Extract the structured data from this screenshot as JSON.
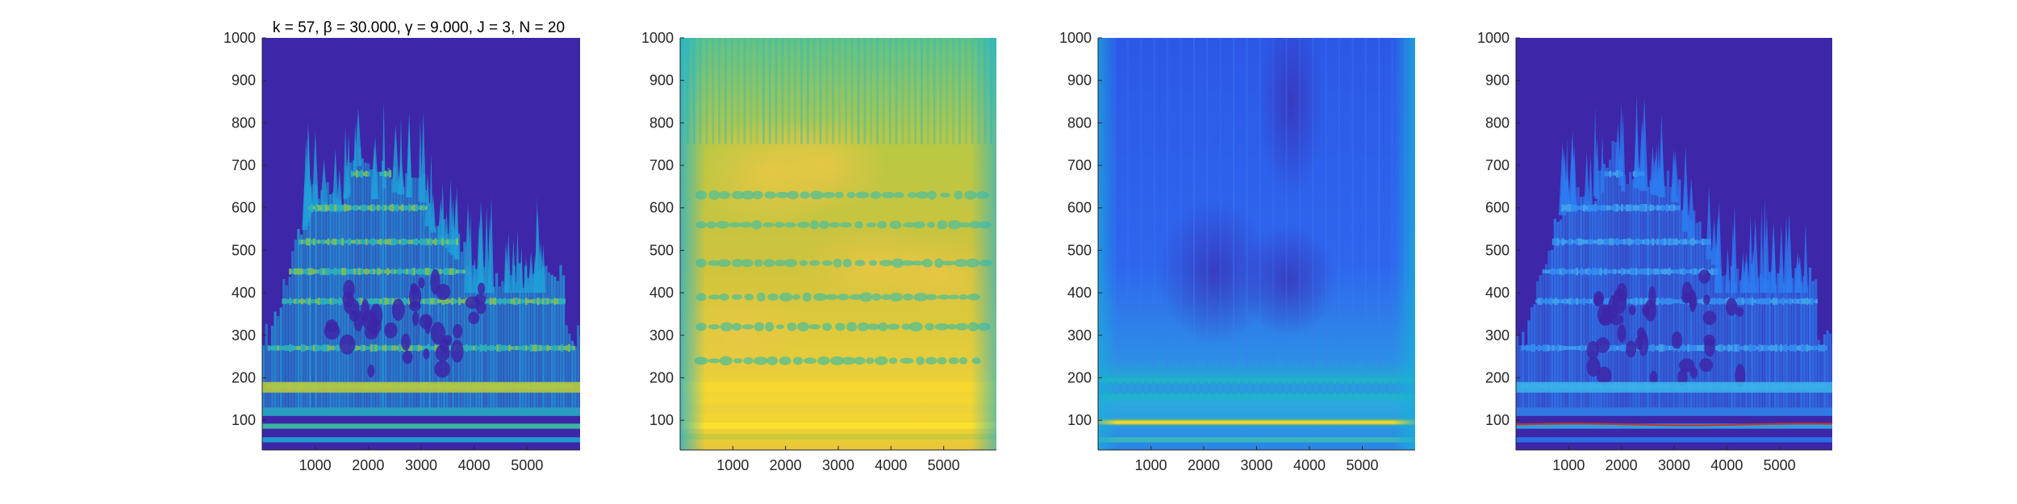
{
  "colors": {
    "background": "#3d26a8",
    "cyan": "#19b2d6",
    "green_teal": "#33b8a1",
    "yellow_green": "#a7c538",
    "yellow": "#f5d52f",
    "blue": "#2c6cf2",
    "axis": "#262626",
    "ridge_red": "#c0392b"
  },
  "chart_data": [
    {
      "type": "heatmap",
      "title": "k = 57, β = 30.000, γ = 9.000, J = 3, N = 20",
      "xlabel": "",
      "ylabel": "",
      "xlim": [
        0,
        6000
      ],
      "ylim": [
        30,
        1000
      ],
      "xticks": [
        1000,
        2000,
        3000,
        4000,
        5000
      ],
      "yticks": [
        100,
        200,
        300,
        400,
        500,
        600,
        700,
        800,
        900,
        1000
      ],
      "grid": false,
      "colormap": "parula",
      "description_key": "sparse-time-frequency"
    },
    {
      "type": "heatmap",
      "title": "",
      "xlabel": "",
      "ylabel": "",
      "xlim": [
        0,
        6000
      ],
      "ylim": [
        30,
        1000
      ],
      "xticks": [
        1000,
        2000,
        3000,
        4000,
        5000
      ],
      "yticks": [
        100,
        200,
        300,
        400,
        500,
        600,
        700,
        800,
        900,
        1000
      ],
      "grid": false,
      "colormap": "parula",
      "description_key": "smooth-dense"
    },
    {
      "type": "heatmap",
      "title": "",
      "xlabel": "",
      "ylabel": "",
      "xlim": [
        0,
        6000
      ],
      "ylim": [
        30,
        1000
      ],
      "xticks": [
        1000,
        2000,
        3000,
        4000,
        5000
      ],
      "yticks": [
        100,
        200,
        300,
        400,
        500,
        600,
        700,
        800,
        900,
        1000
      ],
      "grid": false,
      "colormap": "parula",
      "description_key": "low-energy-blue"
    },
    {
      "type": "heatmap",
      "title": "",
      "xlabel": "",
      "ylabel": "",
      "xlim": [
        0,
        6000
      ],
      "ylim": [
        30,
        1000
      ],
      "xticks": [
        1000,
        2000,
        3000,
        4000,
        5000
      ],
      "yticks": [
        100,
        200,
        300,
        400,
        500,
        600,
        700,
        800,
        900,
        1000
      ],
      "grid": false,
      "colormap": "parula",
      "description_key": "sparse-with-ridge",
      "ridge_y": 90
    }
  ]
}
